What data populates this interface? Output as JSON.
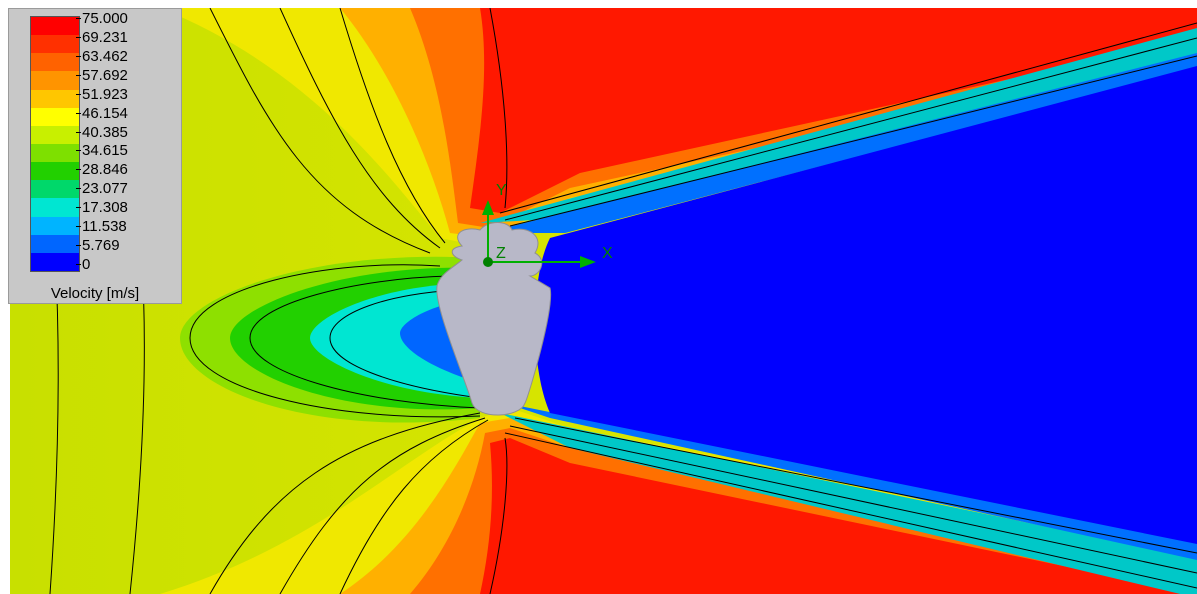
{
  "legend": {
    "title": "Velocity [m/s]",
    "labels": [
      "75.000",
      "69.231",
      "63.462",
      "57.692",
      "51.923",
      "46.154",
      "40.385",
      "34.615",
      "28.846",
      "23.077",
      "17.308",
      "11.538",
      "5.769",
      "0"
    ],
    "colors": [
      "#ff0000",
      "#ff3000",
      "#ff6200",
      "#ff9400",
      "#ffc600",
      "#ffff00",
      "#c8f000",
      "#7ee000",
      "#22d000",
      "#00d86a",
      "#00e6d2",
      "#00b4ff",
      "#0066ff",
      "#0000ff"
    ]
  },
  "triad": {
    "x_label": "X",
    "y_label": "Y",
    "z_label": "Z",
    "x_color": "#00b000",
    "y_color": "#00b000",
    "z_color": "#00b000"
  },
  "plot": {
    "background_far_field": "#d4e000",
    "wake_color": "#0000ff",
    "body_color": "#b8b8c8"
  }
}
